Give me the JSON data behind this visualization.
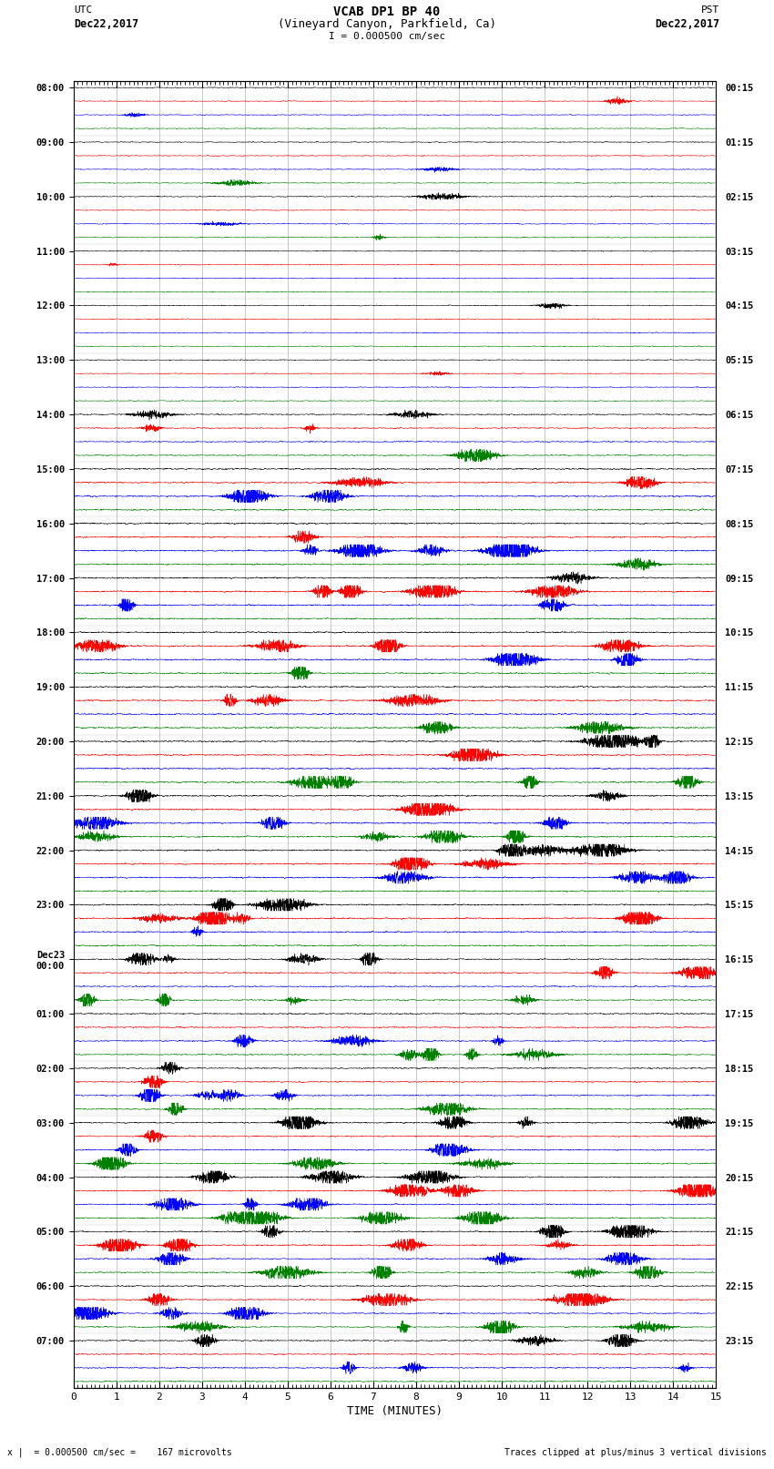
{
  "title_line1": "VCAB DP1 BP 40",
  "title_line2": "(Vineyard Canyon, Parkfield, Ca)",
  "scale_label": "I = 0.000500 cm/sec",
  "left_label_top": "UTC",
  "left_label_date": "Dec22,2017",
  "right_label_top": "PST",
  "right_label_date": "Dec22,2017",
  "bottom_label": "TIME (MINUTES)",
  "footer_left": "x |  = 0.000500 cm/sec =    167 microvolts",
  "footer_right": "Traces clipped at plus/minus 3 vertical divisions",
  "xlim": [
    0,
    15
  ],
  "xticks": [
    0,
    1,
    2,
    3,
    4,
    5,
    6,
    7,
    8,
    9,
    10,
    11,
    12,
    13,
    14,
    15
  ],
  "colors": [
    "black",
    "red",
    "blue",
    "green"
  ],
  "num_rows": 96,
  "row_labels_left": [
    "08:00",
    "",
    "",
    "",
    "09:00",
    "",
    "",
    "",
    "10:00",
    "",
    "",
    "",
    "11:00",
    "",
    "",
    "",
    "12:00",
    "",
    "",
    "",
    "13:00",
    "",
    "",
    "",
    "14:00",
    "",
    "",
    "",
    "15:00",
    "",
    "",
    "",
    "16:00",
    "",
    "",
    "",
    "17:00",
    "",
    "",
    "",
    "18:00",
    "",
    "",
    "",
    "19:00",
    "",
    "",
    "",
    "20:00",
    "",
    "",
    "",
    "21:00",
    "",
    "",
    "",
    "22:00",
    "",
    "",
    "",
    "23:00",
    "",
    "",
    "",
    "Dec23\n00:00",
    "",
    "",
    "",
    "01:00",
    "",
    "",
    "",
    "02:00",
    "",
    "",
    "",
    "03:00",
    "",
    "",
    "",
    "04:00",
    "",
    "",
    "",
    "05:00",
    "",
    "",
    "",
    "06:00",
    "",
    "",
    "",
    "07:00",
    "",
    "",
    ""
  ],
  "row_labels_right": [
    "00:15",
    "",
    "",
    "",
    "01:15",
    "",
    "",
    "",
    "02:15",
    "",
    "",
    "",
    "03:15",
    "",
    "",
    "",
    "04:15",
    "",
    "",
    "",
    "05:15",
    "",
    "",
    "",
    "06:15",
    "",
    "",
    "",
    "07:15",
    "",
    "",
    "",
    "08:15",
    "",
    "",
    "",
    "09:15",
    "",
    "",
    "",
    "10:15",
    "",
    "",
    "",
    "11:15",
    "",
    "",
    "",
    "12:15",
    "",
    "",
    "",
    "13:15",
    "",
    "",
    "",
    "14:15",
    "",
    "",
    "",
    "15:15",
    "",
    "",
    "",
    "16:15",
    "",
    "",
    "",
    "17:15",
    "",
    "",
    "",
    "18:15",
    "",
    "",
    "",
    "19:15",
    "",
    "",
    "",
    "20:15",
    "",
    "",
    "",
    "21:15",
    "",
    "",
    "",
    "22:15",
    "",
    "",
    "",
    "23:15",
    "",
    "",
    ""
  ]
}
